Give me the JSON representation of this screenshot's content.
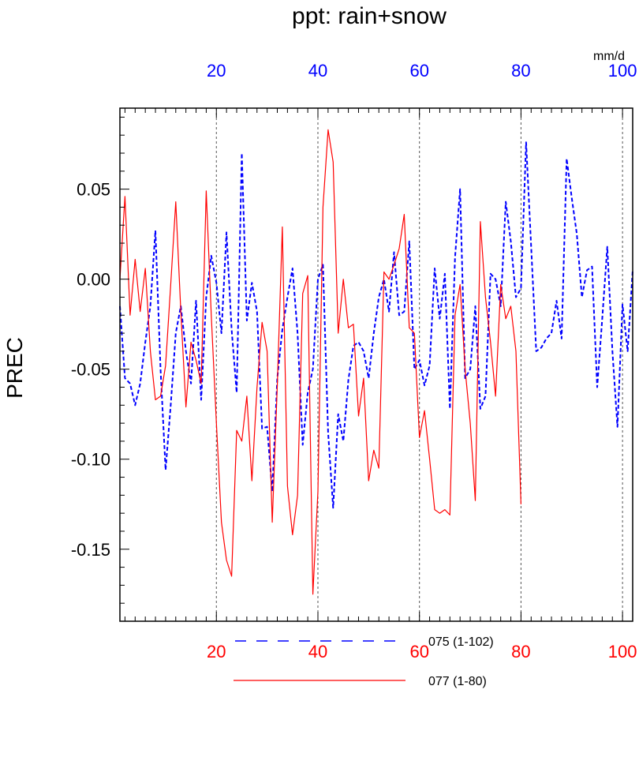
{
  "chart_data": {
    "type": "line",
    "title": "ppt: rain+snow",
    "ylabel": "PREC",
    "units": "mm/d",
    "ylim": [
      -0.19,
      0.095
    ],
    "xlim": [
      1,
      102
    ],
    "grid": "vertical dashed lines at x = 20, 40, 60, 80, 100",
    "yticks": [
      "0.05",
      "0.00",
      "-0.05",
      "-0.10",
      "-0.15"
    ],
    "ytick_values": [
      0.05,
      0.0,
      -0.05,
      -0.1,
      -0.15
    ],
    "top_axis": {
      "ticks": [
        "20",
        "40",
        "60",
        "80",
        "100"
      ],
      "values": [
        20,
        40,
        60,
        80,
        100
      ],
      "color": "#0000ff"
    },
    "bottom_axis": {
      "ticks": [
        "20",
        "40",
        "60",
        "80",
        "100"
      ],
      "values": [
        20,
        40,
        60,
        80,
        100
      ],
      "color": "#ff0000"
    },
    "legend_position": "bottom",
    "series": [
      {
        "name": "075 (1-102)",
        "color": "#0000ff",
        "style": "dashed",
        "x_start": 1,
        "values": [
          -0.015,
          -0.055,
          -0.058,
          -0.07,
          -0.058,
          -0.035,
          -0.015,
          0.027,
          -0.05,
          -0.106,
          -0.07,
          -0.03,
          -0.015,
          -0.04,
          -0.058,
          -0.012,
          -0.067,
          -0.01,
          0.013,
          -0.002,
          -0.03,
          0.026,
          -0.028,
          -0.063,
          0.07,
          -0.023,
          -0.002,
          -0.018,
          -0.083,
          -0.082,
          -0.118,
          -0.055,
          -0.028,
          -0.01,
          0.006,
          -0.03,
          -0.092,
          -0.063,
          -0.05,
          0.0,
          0.008,
          -0.085,
          -0.127,
          -0.075,
          -0.09,
          -0.056,
          -0.037,
          -0.035,
          -0.04,
          -0.055,
          -0.03,
          -0.01,
          0.0,
          -0.018,
          0.015,
          -0.02,
          -0.018,
          0.021,
          -0.05,
          -0.045,
          -0.059,
          -0.048,
          0.006,
          -0.022,
          0.003,
          -0.072,
          0.012,
          0.05,
          -0.055,
          -0.05,
          -0.015,
          -0.072,
          -0.065,
          0.003,
          0.0,
          -0.015,
          0.043,
          0.021,
          -0.01,
          -0.005,
          0.076,
          0.018,
          -0.04,
          -0.038,
          -0.033,
          -0.03,
          -0.012,
          -0.033,
          0.067,
          0.045,
          0.025,
          -0.01,
          0.005,
          0.007,
          -0.06,
          -0.022,
          0.018,
          -0.04,
          -0.082,
          -0.014,
          -0.04,
          0.005
        ]
      },
      {
        "name": "077 (1-80)",
        "color": "#ff0000",
        "style": "solid",
        "x_start": 1,
        "values": [
          0.0,
          0.046,
          -0.02,
          0.011,
          -0.018,
          0.006,
          -0.04,
          -0.067,
          -0.065,
          -0.048,
          -0.003,
          0.043,
          -0.018,
          -0.071,
          -0.035,
          -0.045,
          -0.058,
          0.049,
          -0.02,
          -0.08,
          -0.135,
          -0.156,
          -0.165,
          -0.084,
          -0.09,
          -0.065,
          -0.112,
          -0.06,
          -0.024,
          -0.04,
          -0.135,
          -0.059,
          0.029,
          -0.115,
          -0.142,
          -0.12,
          -0.008,
          0.002,
          -0.175,
          -0.118,
          0.04,
          0.083,
          0.065,
          -0.03,
          -0.0,
          -0.027,
          -0.025,
          -0.076,
          -0.055,
          -0.112,
          -0.095,
          -0.105,
          0.004,
          0.0,
          0.008,
          0.017,
          0.036,
          -0.027,
          -0.03,
          -0.088,
          -0.073,
          -0.1,
          -0.128,
          -0.13,
          -0.128,
          -0.131,
          -0.02,
          -0.003,
          -0.05,
          -0.08,
          -0.123,
          0.032,
          -0.01,
          -0.035,
          -0.065,
          -0.003,
          -0.022,
          -0.015,
          -0.04,
          -0.125
        ]
      }
    ]
  }
}
